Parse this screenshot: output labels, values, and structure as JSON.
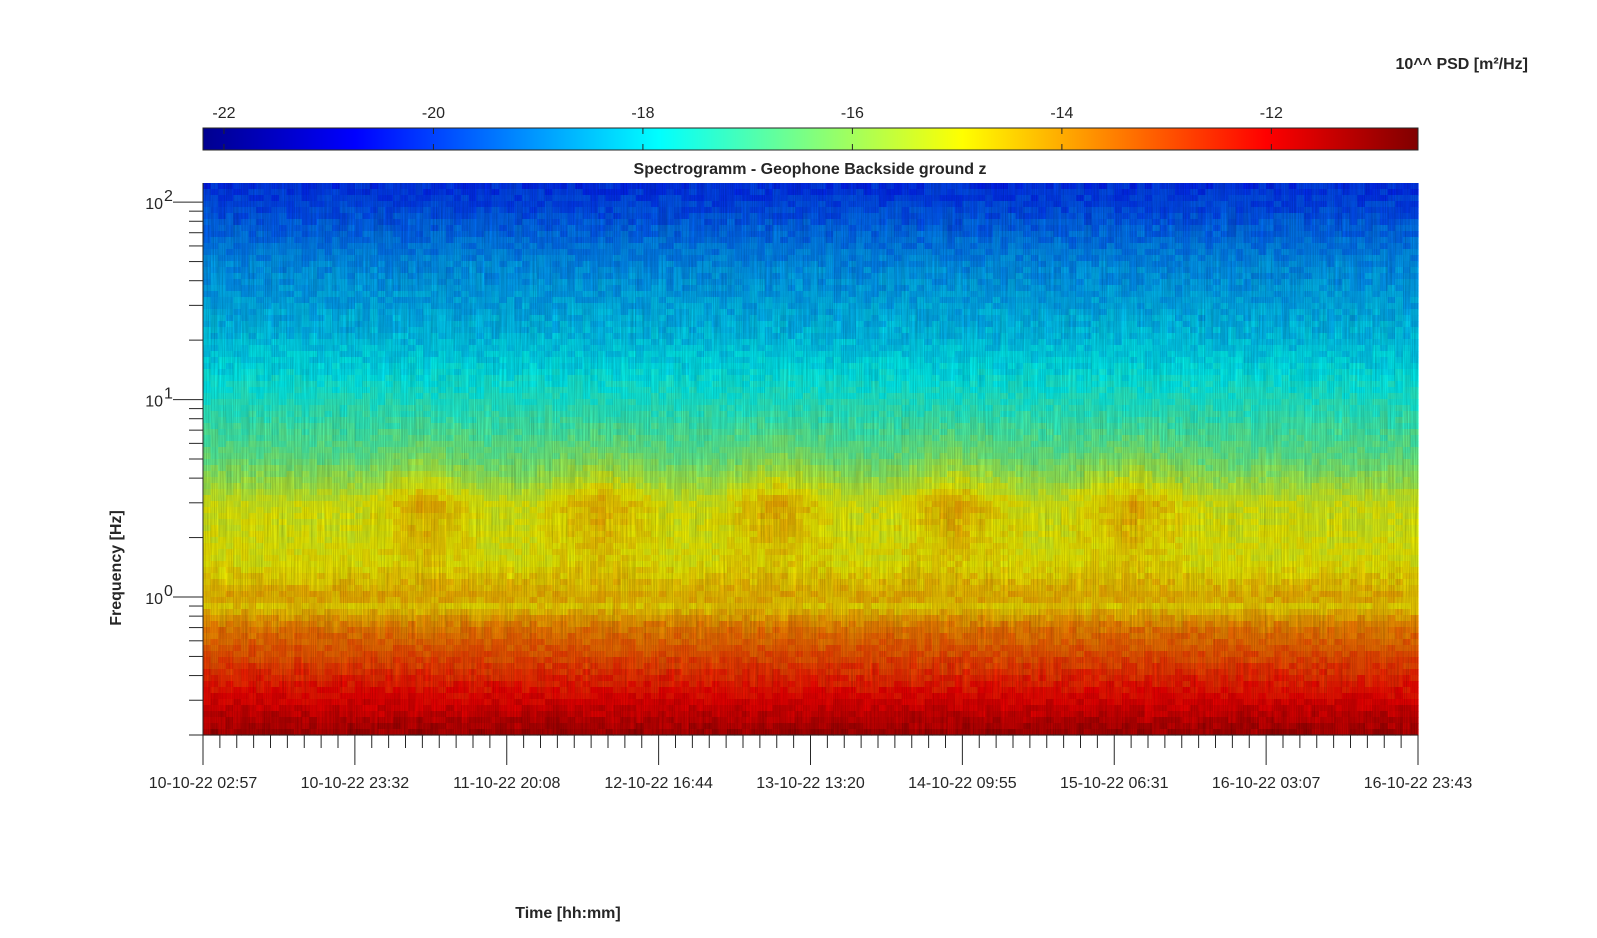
{
  "chart_data": {
    "type": "heatmap",
    "title": "Spectrogramm - Geophone Backside ground z",
    "xlabel": "Time [hh:mm]",
    "ylabel": "Frequency [Hz]",
    "colorbar_label": "10^^ PSD [m²/Hz]",
    "colormap": "jet",
    "color_range": [
      -22.2,
      -10.6
    ],
    "colorbar_ticks": [
      "-22",
      "-20",
      "-18",
      "-16",
      "-14",
      "-12"
    ],
    "colorbar_tick_values": [
      -22,
      -20,
      -18,
      -16,
      -14,
      -12
    ],
    "y_scale": "log",
    "y_range_hz": [
      0.2,
      125
    ],
    "y_ticks": [
      {
        "value": 1,
        "base": "10",
        "exp": "0"
      },
      {
        "value": 10,
        "base": "10",
        "exp": "1"
      },
      {
        "value": 100,
        "base": "10",
        "exp": "2"
      }
    ],
    "x_range": [
      "10-10-22 02:57",
      "16-10-22 23:43"
    ],
    "x_ticks": [
      "10-10-22 02:57",
      "10-10-22 23:32",
      "11-10-22 20:08",
      "12-10-22 16:44",
      "13-10-22 13:20",
      "14-10-22 09:55",
      "15-10-22 06:31",
      "16-10-22 03:07",
      "16-10-22 23:43"
    ],
    "x_minor_ticks_per_interval": 8,
    "psd_profile_by_frequency": [
      {
        "hz": 0.2,
        "log10_psd": -11.2
      },
      {
        "hz": 0.3,
        "log10_psd": -12.0
      },
      {
        "hz": 0.5,
        "log10_psd": -13.0
      },
      {
        "hz": 0.7,
        "log10_psd": -13.6
      },
      {
        "hz": 0.9,
        "log10_psd": -14.6
      },
      {
        "hz": 1.0,
        "log10_psd": -14.2
      },
      {
        "hz": 1.5,
        "log10_psd": -15.0
      },
      {
        "hz": 3.0,
        "log10_psd": -15.2
      },
      {
        "hz": 5.0,
        "log10_psd": -16.6
      },
      {
        "hz": 10,
        "log10_psd": -17.5
      },
      {
        "hz": 20,
        "log10_psd": -18.3
      },
      {
        "hz": 50,
        "log10_psd": -19.0
      },
      {
        "hz": 125,
        "log10_psd": -20.2
      }
    ],
    "activity_bursts": [
      {
        "center_day": 1.25,
        "width_day": 0.35,
        "hz": 3.0
      },
      {
        "center_day": 2.25,
        "width_day": 0.4,
        "hz": 3.0
      },
      {
        "center_day": 3.25,
        "width_day": 0.4,
        "hz": 3.0
      },
      {
        "center_day": 4.25,
        "width_day": 0.4,
        "hz": 3.0
      },
      {
        "center_day": 5.25,
        "width_day": 0.4,
        "hz": 3.0
      }
    ]
  }
}
